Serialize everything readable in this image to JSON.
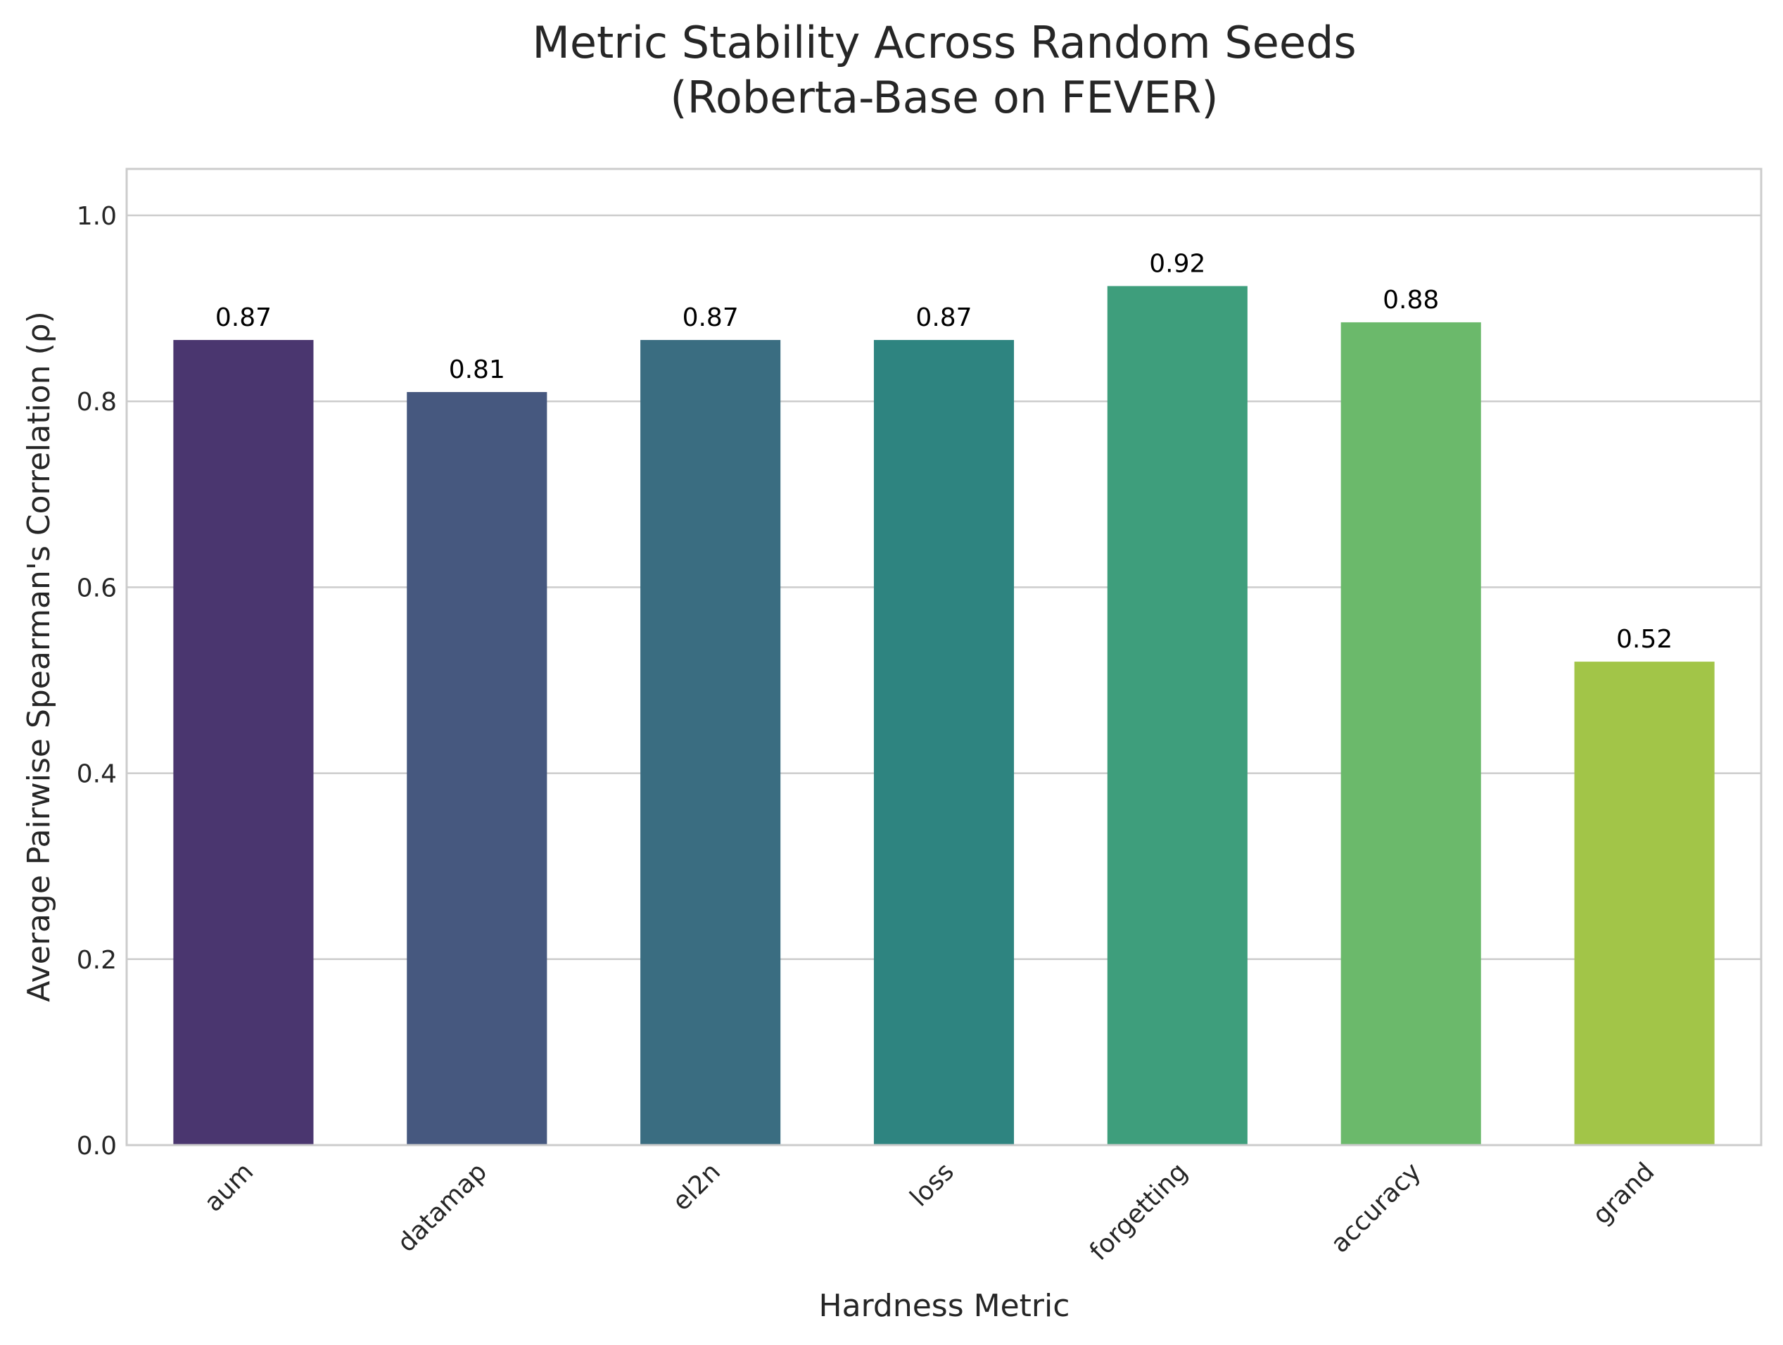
{
  "chart_data": {
    "type": "bar",
    "title_line1": "Metric Stability Across Random Seeds",
    "title_line2": "(Roberta-Base on FEVER)",
    "xlabel": "Hardness Metric",
    "ylabel": "Average Pairwise Spearman's Correlation (ρ)",
    "categories": [
      "aum",
      "datamap",
      "el2n",
      "loss",
      "forgetting",
      "accuracy",
      "grand"
    ],
    "values": [
      0.866,
      0.81,
      0.866,
      0.866,
      0.924,
      0.885,
      0.52
    ],
    "data_labels": [
      "0.87",
      "0.81",
      "0.87",
      "0.87",
      "0.92",
      "0.88",
      "0.52"
    ],
    "colors": [
      "#4a366f",
      "#46587f",
      "#3a6d81",
      "#2e8480",
      "#3e9e7c",
      "#6bb96b",
      "#a2c548"
    ],
    "ylim": [
      0,
      1.05
    ],
    "yticks": [
      0.0,
      0.2,
      0.4,
      0.6,
      0.8,
      1.0
    ],
    "ytick_labels": [
      "0.0",
      "0.2",
      "0.4",
      "0.6",
      "0.8",
      "1.0"
    ],
    "grid": "horizontal",
    "legend": "none"
  }
}
